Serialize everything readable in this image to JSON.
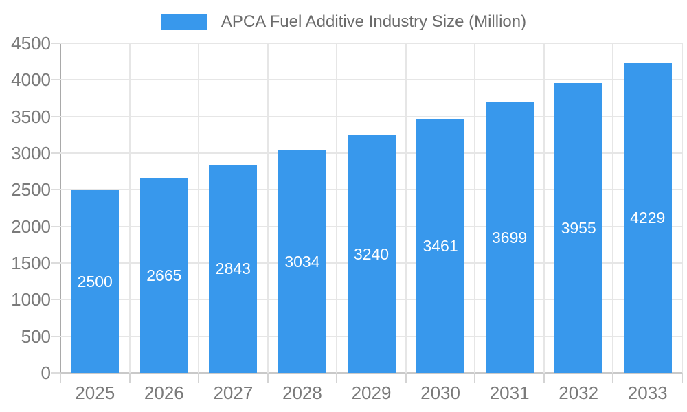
{
  "legend": {
    "label": "APCA Fuel Additive Industry Size (Million)"
  },
  "chart_data": {
    "type": "bar",
    "title": "APCA Fuel Additive Industry Size (Million)",
    "categories": [
      "2025",
      "2026",
      "2027",
      "2028",
      "2029",
      "2030",
      "2031",
      "2032",
      "2033"
    ],
    "series": [
      {
        "name": "APCA Fuel Additive Industry Size (Million)",
        "values": [
          2500,
          2665,
          2843,
          3034,
          3240,
          3461,
          3699,
          3955,
          4229
        ]
      }
    ],
    "value_labels_shown": true,
    "xlabel": "",
    "ylabel": "",
    "ylim": [
      0,
      4500
    ],
    "ytick_step": 500,
    "yticks": [
      0,
      500,
      1000,
      1500,
      2000,
      2500,
      3000,
      3500,
      4000,
      4500
    ],
    "grid": true,
    "legend_position": "top"
  },
  "colors": {
    "bar": "#3898EC",
    "bar_value_text": "#FFFFFF",
    "grid": "#E6E6E6",
    "y_axis_line": "#A9A9A9",
    "x_axis_line": "#C9C9C9",
    "tick_text": "#7A7A7A",
    "legend_text": "#6B6B6B"
  }
}
